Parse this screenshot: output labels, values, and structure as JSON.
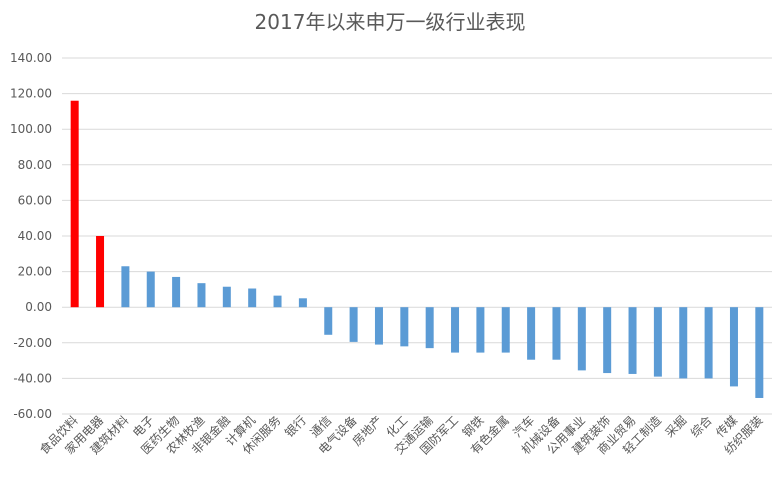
{
  "chart_data": {
    "type": "bar",
    "title": "2017年以来申万一级行业表现",
    "xlabel": "",
    "ylabel": "",
    "ylim": [
      -60,
      140
    ],
    "yticks": [
      "140.00",
      "120.00",
      "100.00",
      "80.00",
      "60.00",
      "40.00",
      "20.00",
      "0.00",
      "-20.00",
      "-40.00",
      "-60.00"
    ],
    "ytick_values": [
      140,
      120,
      100,
      80,
      60,
      40,
      20,
      0,
      -20,
      -40,
      -60
    ],
    "grid": true,
    "legend": "none",
    "categories": [
      "食品饮料",
      "家用电器",
      "建筑材料",
      "电子",
      "医药生物",
      "农林牧渔",
      "非银金融",
      "计算机",
      "休闲服务",
      "银行",
      "通信",
      "电气设备",
      "房地产",
      "化工",
      "交通运输",
      "国防军工",
      "钢铁",
      "有色金属",
      "汽车",
      "机械设备",
      "公用事业",
      "建筑装饰",
      "商业贸易",
      "轻工制造",
      "采掘",
      "综合",
      "传媒",
      "纺织服装"
    ],
    "values": [
      116,
      40,
      23,
      20,
      17,
      13.5,
      11.5,
      10.5,
      6.5,
      5,
      -15.5,
      -19.5,
      -21,
      -22,
      -23,
      -25.5,
      -25.5,
      -25.5,
      -29.5,
      -29.5,
      -35.5,
      -37,
      -37.5,
      -39,
      -40,
      -40,
      -44.5,
      -51
    ],
    "colors": {
      "highlight": "#ff0000",
      "default": "#5b9bd5",
      "highlight_count": 2
    }
  }
}
